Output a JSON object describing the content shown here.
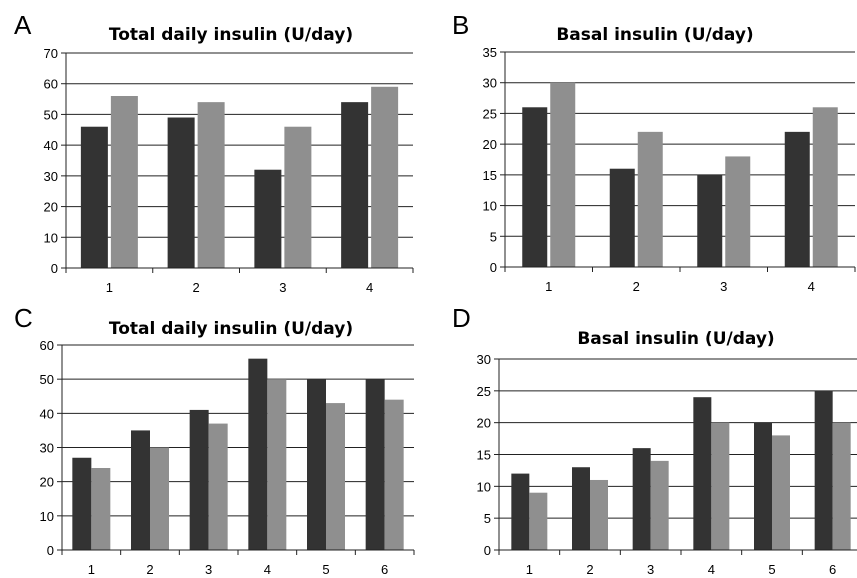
{
  "chart_data": [
    {
      "panel": "A",
      "type": "bar",
      "title": "Total daily insulin (U/day)",
      "xlabel": "",
      "ylabel": "",
      "categories": [
        "1",
        "2",
        "3",
        "4"
      ],
      "series": [
        {
          "values": [
            46,
            49,
            32,
            54
          ],
          "color": "#333333"
        },
        {
          "values": [
            56,
            54,
            46,
            59
          ],
          "color": "#8f8f8f"
        }
      ],
      "ylim": [
        0,
        70
      ],
      "yticks": [
        0,
        10,
        20,
        30,
        40,
        50,
        60,
        70
      ],
      "grid": true,
      "legend": "none"
    },
    {
      "panel": "B",
      "type": "bar",
      "title": "Basal insulin (U/day)",
      "xlabel": "",
      "ylabel": "",
      "categories": [
        "1",
        "2",
        "3",
        "4"
      ],
      "series": [
        {
          "values": [
            26,
            16,
            15,
            22
          ],
          "color": "#333333"
        },
        {
          "values": [
            30,
            22,
            18,
            26
          ],
          "color": "#8f8f8f"
        }
      ],
      "ylim": [
        0,
        35
      ],
      "yticks": [
        0,
        5,
        10,
        15,
        20,
        25,
        30,
        35
      ],
      "grid": true,
      "legend": "none"
    },
    {
      "panel": "C",
      "type": "bar",
      "title": "Total daily insulin (U/day)",
      "xlabel": "",
      "ylabel": "",
      "categories": [
        "1",
        "2",
        "3",
        "4",
        "5",
        "6"
      ],
      "series": [
        {
          "values": [
            27,
            35,
            41,
            56,
            50,
            50
          ],
          "color": "#333333"
        },
        {
          "values": [
            24,
            30,
            37,
            50,
            43,
            44
          ],
          "color": "#8f8f8f"
        }
      ],
      "ylim": [
        0,
        60
      ],
      "yticks": [
        0,
        10,
        20,
        30,
        40,
        50,
        60
      ],
      "grid": true,
      "legend": "none"
    },
    {
      "panel": "D",
      "type": "bar",
      "title": "Basal insulin (U/day)",
      "xlabel": "",
      "ylabel": "",
      "categories": [
        "1",
        "2",
        "3",
        "4",
        "5",
        "6"
      ],
      "series": [
        {
          "values": [
            12,
            13,
            16,
            24,
            20,
            25
          ],
          "color": "#333333"
        },
        {
          "values": [
            9,
            11,
            14,
            20,
            18,
            20
          ],
          "color": "#8f8f8f"
        }
      ],
      "ylim": [
        0,
        30
      ],
      "yticks": [
        0,
        5,
        10,
        15,
        20,
        25,
        30
      ],
      "grid": true,
      "legend": "none"
    }
  ]
}
